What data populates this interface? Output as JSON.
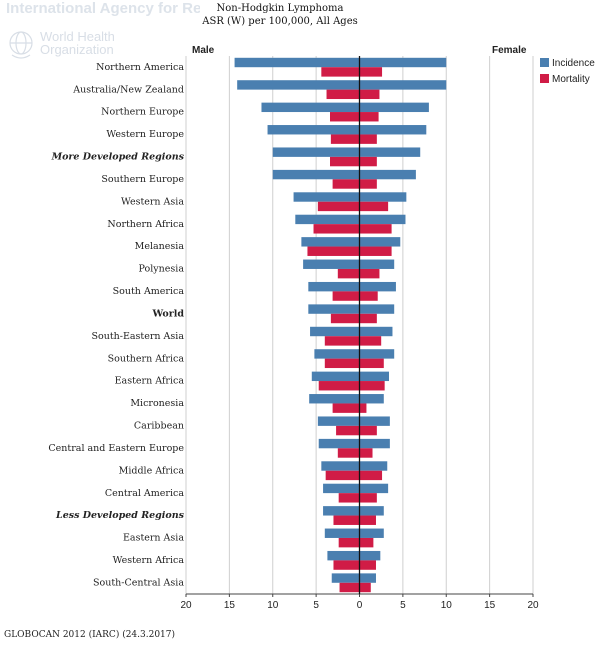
{
  "header": {
    "agency": "International Agency for Research on Can",
    "who_line1": "World Health",
    "who_line2": "Organization"
  },
  "chart_title": {
    "line1": "Non-Hodgkin Lymphoma",
    "line2": "ASR (W) per 100,000, All Ages"
  },
  "labels": {
    "male": "Male",
    "female": "Female"
  },
  "footer": "GLOBOCAN 2012 (IARC) (24.3.2017)",
  "colors": {
    "incidence": "#4a7fb0",
    "mortality": "#d01c46",
    "grid": "#cfcfcf"
  },
  "chart_data": {
    "type": "bar",
    "orientation": "horizontal-population-pyramid",
    "title": "Non-Hodgkin Lymphoma",
    "subtitle": "ASR (W) per 100,000, All Ages",
    "left_label": "Male",
    "right_label": "Female",
    "xlim": [
      -20,
      20
    ],
    "xticks": [
      20,
      15,
      10,
      5,
      0,
      5,
      10,
      15,
      20
    ],
    "grid": true,
    "legend_position": "top-right",
    "categories": [
      "Northern America",
      "Australia/New Zealand",
      "Northern Europe",
      "Western Europe",
      "More Developed Regions",
      "Southern Europe",
      "Western Asia",
      "Northern Africa",
      "Melanesia",
      "Polynesia",
      "South America",
      "World",
      "South-Eastern Asia",
      "Southern Africa",
      "Eastern Africa",
      "Micronesia",
      "Caribbean",
      "Central and Eastern Europe",
      "Middle Africa",
      "Central America",
      "Less Developed Regions",
      "Eastern Asia",
      "Western Africa",
      "South-Central Asia"
    ],
    "category_style": [
      "",
      "",
      "",
      "",
      "em",
      "",
      "",
      "",
      "",
      "",
      "",
      "strong",
      "",
      "",
      "",
      "",
      "",
      "",
      "",
      "",
      "em",
      "",
      "",
      ""
    ],
    "series": [
      {
        "name": "Incidence",
        "side": "Male",
        "values": [
          14.4,
          14.1,
          11.3,
          10.6,
          10.0,
          10.0,
          7.6,
          7.4,
          6.7,
          6.5,
          5.9,
          5.9,
          5.7,
          5.2,
          5.5,
          5.8,
          4.8,
          4.7,
          4.4,
          4.2,
          4.2,
          4.0,
          3.7,
          3.2
        ]
      },
      {
        "name": "Mortality",
        "side": "Male",
        "values": [
          4.4,
          3.8,
          3.4,
          3.3,
          3.4,
          3.1,
          4.8,
          5.3,
          6.0,
          2.5,
          3.1,
          3.3,
          4.0,
          4.0,
          4.7,
          3.1,
          2.7,
          2.5,
          3.9,
          2.4,
          3.0,
          2.4,
          3.0,
          2.3
        ]
      },
      {
        "name": "Incidence",
        "side": "Female",
        "values": [
          10.0,
          10.0,
          8.0,
          7.7,
          7.0,
          6.5,
          5.4,
          5.3,
          4.7,
          4.0,
          4.2,
          4.0,
          3.8,
          4.0,
          3.4,
          2.8,
          3.5,
          3.5,
          3.2,
          3.3,
          2.8,
          2.8,
          2.4,
          1.9
        ]
      },
      {
        "name": "Mortality",
        "side": "Female",
        "values": [
          2.6,
          2.3,
          2.2,
          2.0,
          2.0,
          2.0,
          3.3,
          3.7,
          3.7,
          2.3,
          2.1,
          2.0,
          2.5,
          2.8,
          2.9,
          0.8,
          2.0,
          1.5,
          2.6,
          2.0,
          1.9,
          1.6,
          1.9,
          1.3
        ]
      }
    ],
    "legend": [
      {
        "name": "Incidence",
        "color": "#4a7fb0"
      },
      {
        "name": "Mortality",
        "color": "#d01c46"
      }
    ]
  }
}
